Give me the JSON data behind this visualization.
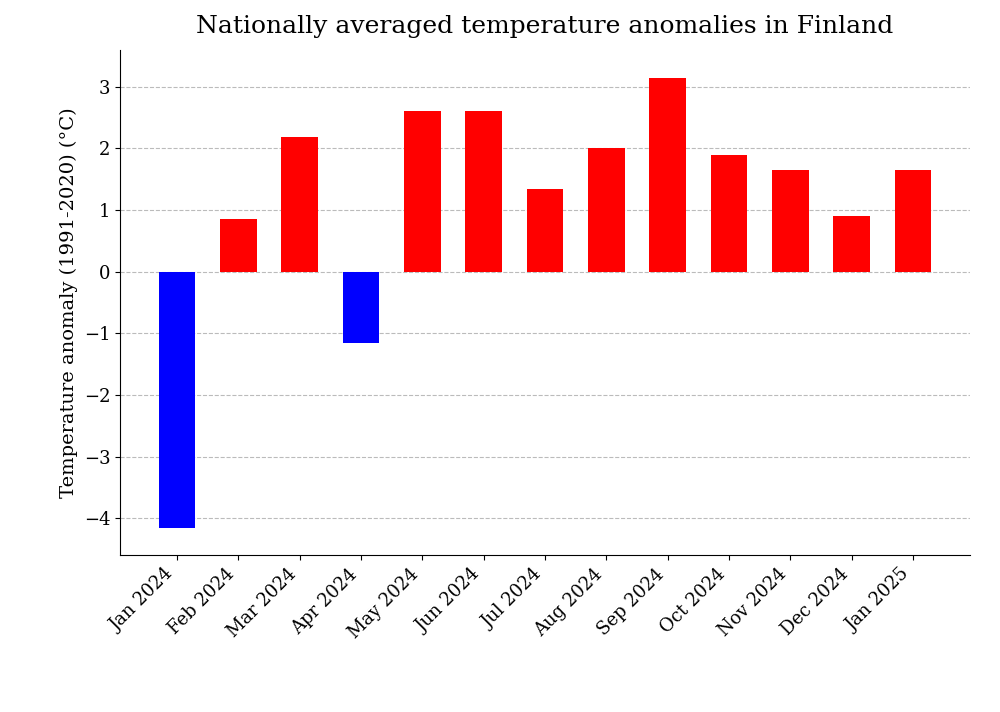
{
  "title": "Nationally averaged temperature anomalies in Finland",
  "ylabel": "Temperature anomaly (1991-2020) (°C)",
  "categories": [
    "Jan 2024",
    "Feb 2024",
    "Mar 2024",
    "Apr 2024",
    "May 2024",
    "Jun 2024",
    "Jul 2024",
    "Aug 2024",
    "Sep 2024",
    "Oct 2024",
    "Nov 2024",
    "Dec 2024",
    "Jan 2025"
  ],
  "values": [
    -4.15,
    0.85,
    2.18,
    -1.15,
    2.6,
    2.6,
    1.35,
    2.0,
    3.15,
    1.9,
    1.65,
    0.9,
    1.65
  ],
  "bar_colors": [
    "blue",
    "red",
    "red",
    "blue",
    "red",
    "red",
    "red",
    "red",
    "red",
    "red",
    "red",
    "red",
    "red"
  ],
  "ylim": [
    -4.6,
    3.6
  ],
  "yticks": [
    -4,
    -3,
    -2,
    -1,
    0,
    1,
    2,
    3
  ],
  "title_fontsize": 18,
  "label_fontsize": 14,
  "tick_fontsize": 13,
  "xtick_fontsize": 13,
  "background_color": "#ffffff",
  "grid_color": "#aaaaaa",
  "grid_linestyle": "--",
  "grid_alpha": 0.8
}
